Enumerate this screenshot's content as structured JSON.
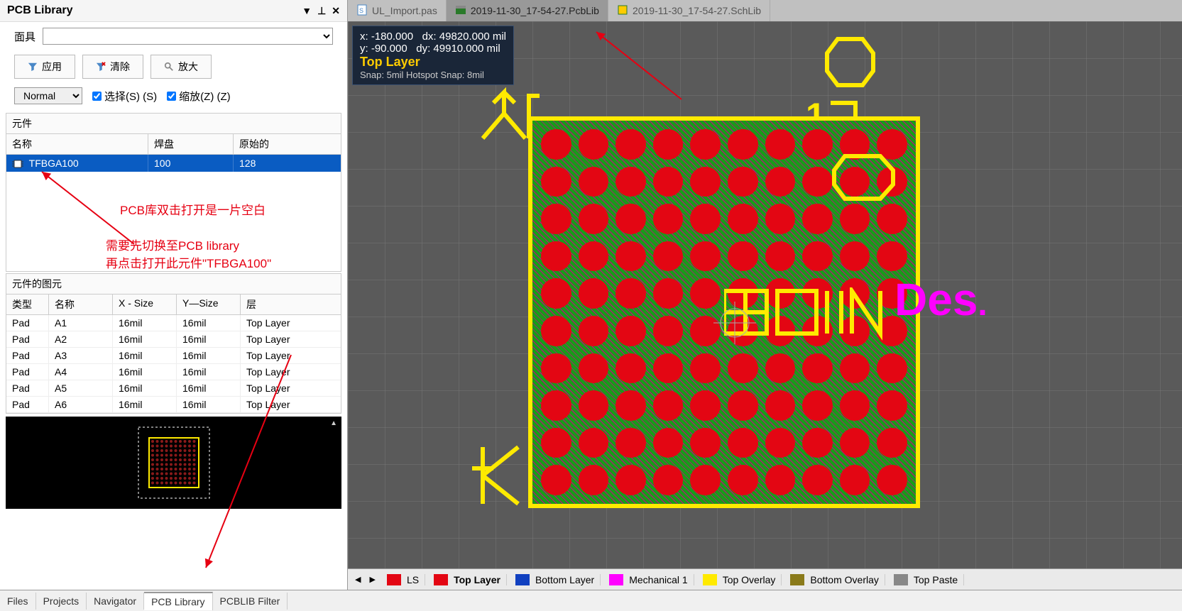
{
  "panel": {
    "title": "PCB Library",
    "mask_label": "面具",
    "toolbar": {
      "apply": "应用",
      "clear": "清除",
      "zoom": "放大"
    },
    "normal": "Normal",
    "check_select": "选择(S) (S)",
    "check_zoom": "缩放(Z) (Z)",
    "section_components": "元件",
    "comp_headers": {
      "name": "名称",
      "pads": "焊盘",
      "orig": "原始的"
    },
    "comp_row": {
      "name": "TFBGA100",
      "pads": "100",
      "orig": "128"
    },
    "annotation1": "PCB库双击打开是一片空白",
    "annotation2": "需要先切换至PCB library",
    "annotation3": "再点击打开此元件\"TFBGA100\"",
    "section_prims": "元件的图元",
    "prim_headers": {
      "type": "类型",
      "name": "名称",
      "x": "X - Size",
      "y": "Y—Size",
      "layer": "层"
    },
    "prims": [
      {
        "type": "Pad",
        "name": "A1",
        "x": "16mil",
        "y": "16mil",
        "layer": "Top Layer"
      },
      {
        "type": "Pad",
        "name": "A2",
        "x": "16mil",
        "y": "16mil",
        "layer": "Top Layer"
      },
      {
        "type": "Pad",
        "name": "A3",
        "x": "16mil",
        "y": "16mil",
        "layer": "Top Layer"
      },
      {
        "type": "Pad",
        "name": "A4",
        "x": "16mil",
        "y": "16mil",
        "layer": "Top Layer"
      },
      {
        "type": "Pad",
        "name": "A5",
        "x": "16mil",
        "y": "16mil",
        "layer": "Top Layer"
      },
      {
        "type": "Pad",
        "name": "A6",
        "x": "16mil",
        "y": "16mil",
        "layer": "Top Layer"
      }
    ]
  },
  "tabs": [
    {
      "label": "UL_Import.pas",
      "icon": "script",
      "active": false
    },
    {
      "label": "2019-11-30_17-54-27.PcbLib",
      "icon": "pcb",
      "active": true
    },
    {
      "label": "2019-11-30_17-54-27.SchLib",
      "icon": "sch",
      "active": false
    }
  ],
  "info": {
    "x": "x:  -180.000",
    "dx": "dx:  49820.000 mil",
    "y": "y:    -90.000",
    "dy": "dy:  49910.000 mil",
    "layer": "Top Layer",
    "snap": "Snap: 5mil Hotspot Snap: 8mil"
  },
  "designator": "Des",
  "bottom_tabs": [
    "Files",
    "Projects",
    "Navigator",
    "PCB Library",
    "PCBLIB Filter"
  ],
  "bottom_active": "PCB Library",
  "layers": [
    {
      "name": "LS",
      "color": "#e30613"
    },
    {
      "name": "Top Layer",
      "color": "#e30613",
      "bold": true
    },
    {
      "name": "Bottom Layer",
      "color": "#1040c0"
    },
    {
      "name": "Mechanical 1",
      "color": "#ff00ff"
    },
    {
      "name": "Top Overlay",
      "color": "#ffea00"
    },
    {
      "name": "Bottom Overlay",
      "color": "#8a7a1a"
    },
    {
      "name": "Top Paste",
      "color": "#888888"
    }
  ],
  "colors": {
    "pad": "#e30613",
    "solder": "#178a17",
    "silk": "#ffea00",
    "mech": "#ff00ff",
    "canvas": "#5a5a5a"
  }
}
